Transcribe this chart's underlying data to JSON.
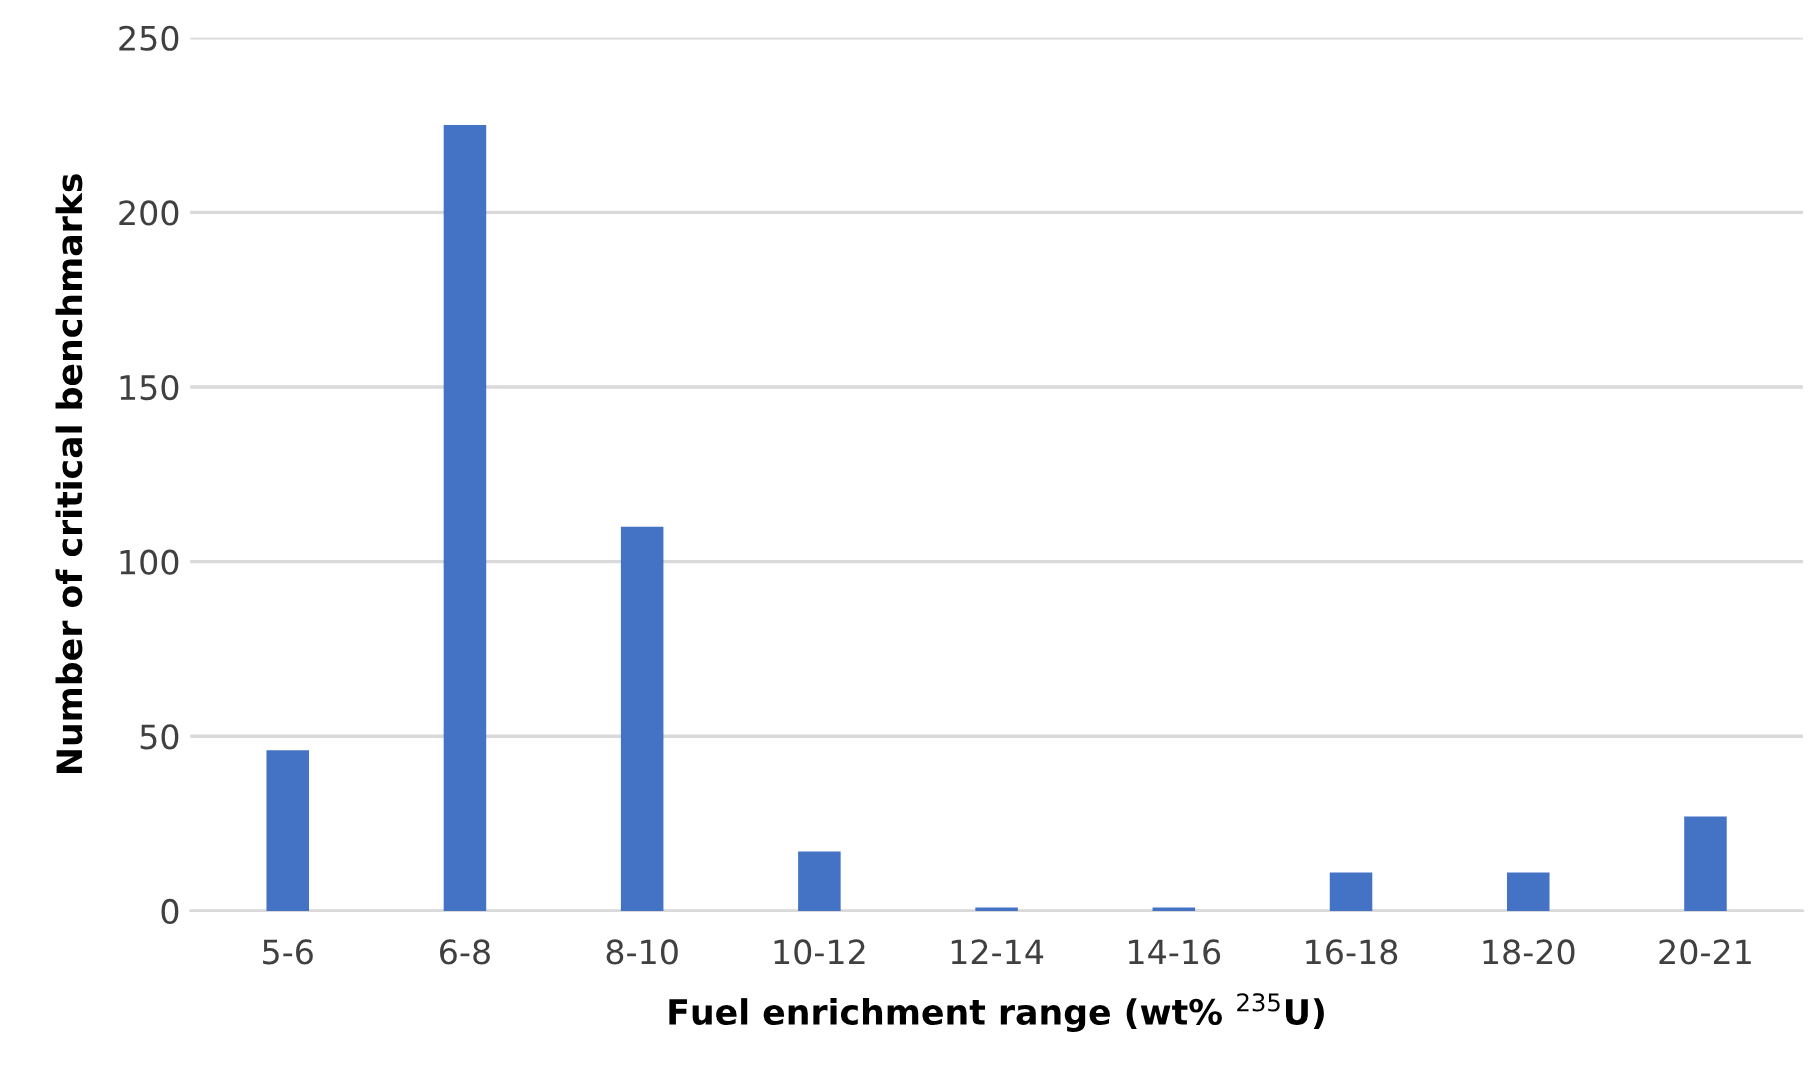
{
  "chart_data": {
    "type": "bar",
    "xlabel": "Fuel enrichment range (wt% $^{235}$U)",
    "ylabel": "Number of critical benchmarks",
    "categories": [
      "5-6",
      "6-8",
      "8-10",
      "10-12",
      "12-14",
      "14-16",
      "16-18",
      "18-20",
      "20-21"
    ],
    "values": [
      46,
      225,
      110,
      17,
      1,
      1,
      11,
      11,
      27
    ],
    "color": "#4472c4",
    "ylim": [
      0,
      250
    ],
    "yticks": [
      0,
      50,
      100,
      150,
      200,
      250
    ],
    "grid": "y",
    "legend": false
  }
}
